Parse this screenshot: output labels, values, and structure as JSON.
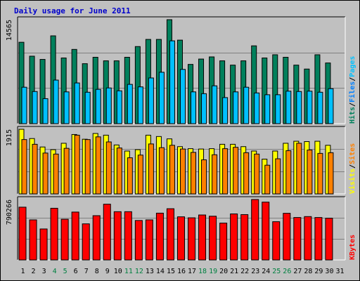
{
  "title": "Daily usage for June 2011",
  "colors": {
    "hits": "#00805c",
    "files": "#0080ff",
    "pages": "#00c0ff",
    "visits": "#ffff00",
    "sites": "#ff8000",
    "kbytes": "#ff0000",
    "weekend_day": "#008040",
    "weekday": "#000000",
    "title": "#0000cc"
  },
  "chart_data": [
    {
      "type": "bar",
      "panel": "hits_files_pages",
      "max_label": "14565",
      "ylim": [
        0,
        14565
      ],
      "categories": [
        "1",
        "2",
        "3",
        "4",
        "5",
        "6",
        "7",
        "8",
        "9",
        "10",
        "11",
        "12",
        "13",
        "14",
        "15",
        "16",
        "17",
        "18",
        "19",
        "20",
        "21",
        "22",
        "23",
        "24",
        "25",
        "26",
        "27",
        "28",
        "29",
        "30",
        "31"
      ],
      "right_labels": [
        {
          "text": "Hits",
          "color": "#00805c"
        },
        {
          "text": "/",
          "color": "#000000"
        },
        {
          "text": "Files",
          "color": "#0080ff"
        },
        {
          "text": "/",
          "color": "#000000"
        },
        {
          "text": "Pages",
          "color": "#00c0ff"
        }
      ],
      "series": [
        {
          "name": "Hits",
          "values": [
            11400,
            9450,
            9000,
            12300,
            9200,
            10400,
            8400,
            9300,
            8800,
            8800,
            9300,
            10800,
            11800,
            11800,
            14565,
            11700,
            8300,
            9050,
            9350,
            8800,
            8200,
            8800,
            10900,
            9200,
            9650,
            9300,
            8200,
            7650,
            9650,
            8500,
            null
          ]
        },
        {
          "name": "Files",
          "values": [
            null,
            null,
            null,
            null,
            null,
            null,
            null,
            null,
            null,
            null,
            null,
            null,
            null,
            null,
            null,
            null,
            null,
            null,
            null,
            null,
            null,
            null,
            null,
            null,
            null,
            null,
            null,
            null,
            null,
            null,
            null
          ]
        },
        {
          "name": "Pages",
          "values": [
            5100,
            4500,
            3500,
            6100,
            4450,
            5700,
            4400,
            4800,
            5000,
            4600,
            5500,
            5150,
            6400,
            7200,
            11600,
            7600,
            4450,
            4200,
            5300,
            3650,
            4450,
            5100,
            4300,
            4050,
            4050,
            4550,
            4500,
            4550,
            4400,
            4900,
            null
          ]
        }
      ]
    },
    {
      "type": "bar",
      "panel": "visits_sites",
      "max_label": "1915",
      "ylim": [
        0,
        1915
      ],
      "categories": [
        "1",
        "2",
        "3",
        "4",
        "5",
        "6",
        "7",
        "8",
        "9",
        "10",
        "11",
        "12",
        "13",
        "14",
        "15",
        "16",
        "17",
        "18",
        "19",
        "20",
        "21",
        "22",
        "23",
        "24",
        "25",
        "26",
        "27",
        "28",
        "29",
        "30",
        "31"
      ],
      "right_labels": [
        {
          "text": "Visits",
          "color": "#ffff00"
        },
        {
          "text": "/",
          "color": "#000000"
        },
        {
          "text": "Sites",
          "color": "#ff8000"
        }
      ],
      "series": [
        {
          "name": "Visits",
          "values": [
            1915,
            1640,
            1390,
            1310,
            1500,
            1760,
            1620,
            1790,
            1740,
            1450,
            1270,
            1310,
            1740,
            1700,
            1630,
            1400,
            1340,
            1330,
            1340,
            1470,
            1470,
            1400,
            1270,
            1030,
            1270,
            1500,
            1560,
            1550,
            1560,
            1440,
            null
          ]
        },
        {
          "name": "Sites",
          "values": [
            1610,
            1470,
            1210,
            1180,
            1350,
            1740,
            1610,
            1690,
            1540,
            1360,
            1070,
            1150,
            1480,
            1370,
            1440,
            1330,
            1230,
            1010,
            1160,
            1340,
            1380,
            1220,
            1180,
            850,
            1040,
            1280,
            1500,
            1300,
            1200,
            1220,
            null
          ]
        }
      ]
    },
    {
      "type": "bar",
      "panel": "kbytes",
      "max_label": "790266",
      "ylim": [
        0,
        790266
      ],
      "categories": [
        "1",
        "2",
        "3",
        "4",
        "5",
        "6",
        "7",
        "8",
        "9",
        "10",
        "11",
        "12",
        "13",
        "14",
        "15",
        "16",
        "17",
        "18",
        "19",
        "20",
        "21",
        "22",
        "23",
        "24",
        "25",
        "26",
        "27",
        "28",
        "29",
        "30",
        "31"
      ],
      "right_labels": [
        {
          "text": "KBytes",
          "color": "#ff0000"
        }
      ],
      "series": [
        {
          "name": "KBytes",
          "values": [
            690000,
            524000,
            405000,
            676000,
            532000,
            626000,
            472000,
            579000,
            729000,
            631000,
            631000,
            516000,
            524000,
            612000,
            670000,
            564000,
            551000,
            588000,
            572000,
            482000,
            602000,
            593000,
            790266,
            756000,
            500000,
            610000,
            555000,
            567000,
            555000,
            546000,
            null
          ]
        }
      ]
    }
  ]
}
